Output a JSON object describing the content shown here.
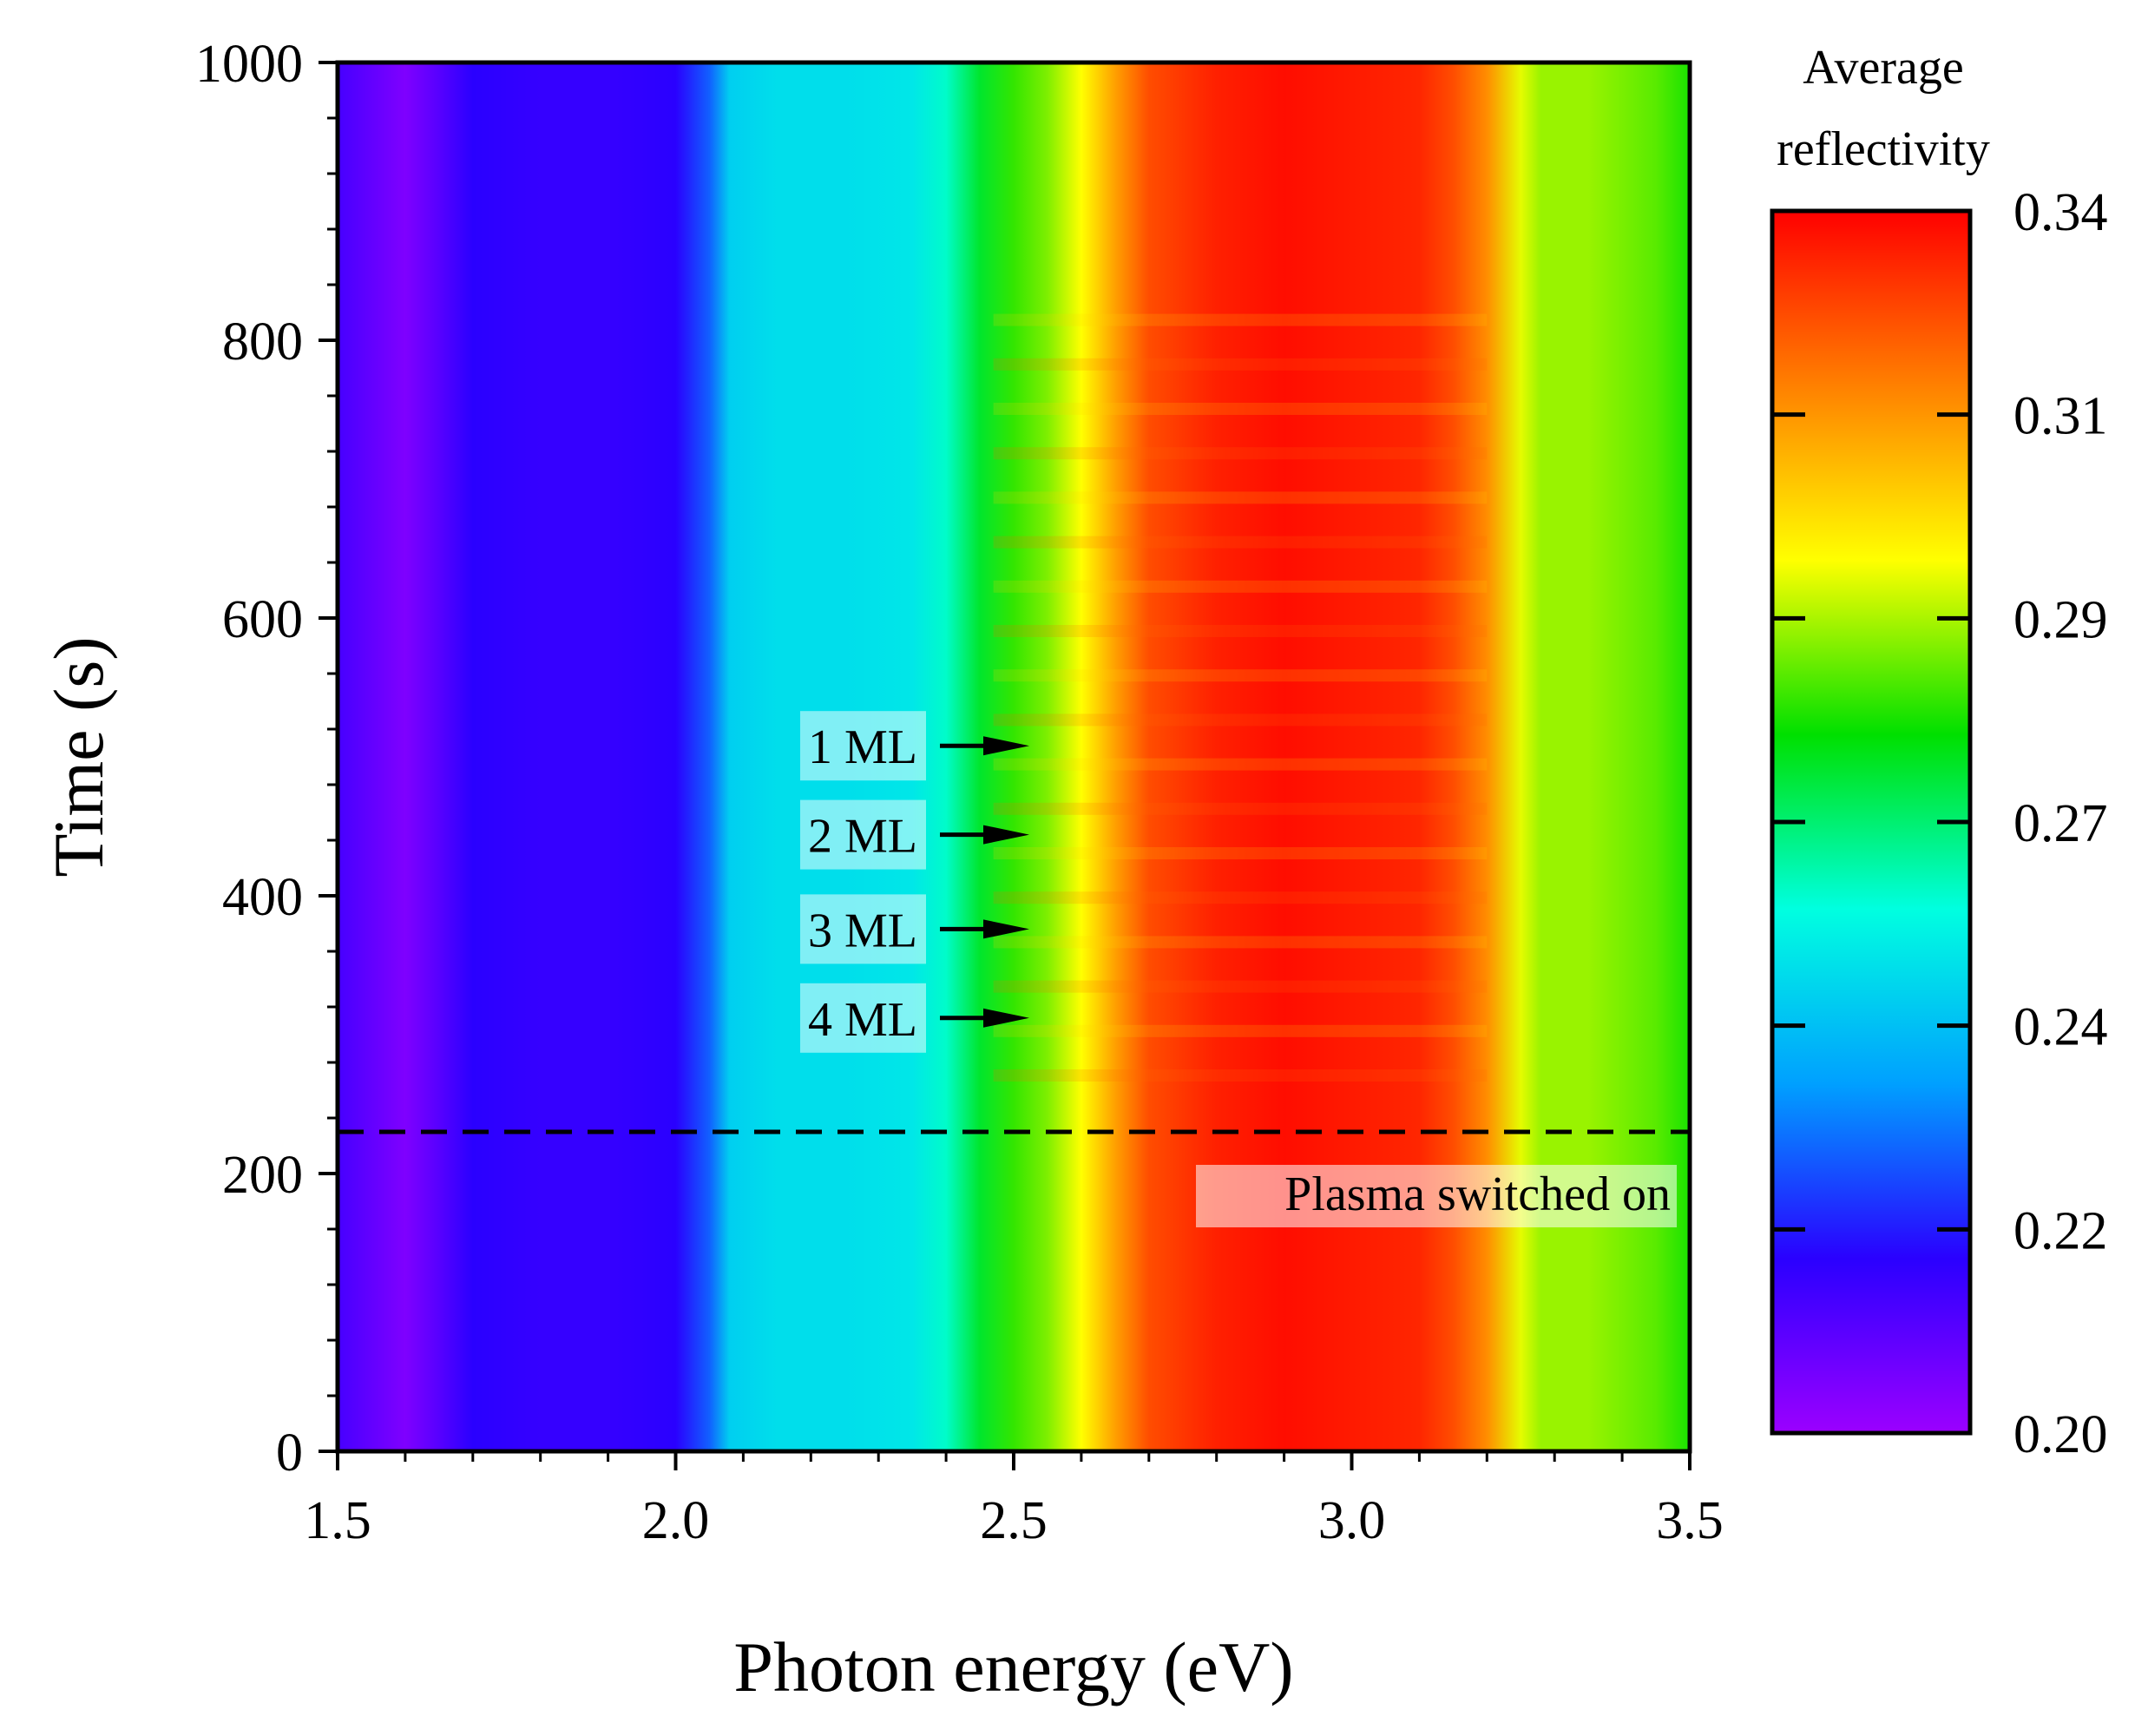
{
  "chart_data": {
    "type": "heatmap",
    "title": "",
    "xlabel": "Photon energy (eV)",
    "ylabel": "Time (s)",
    "xlim": [
      1.5,
      3.5
    ],
    "ylim": [
      0,
      1000
    ],
    "x_ticks": [
      "1.5",
      "2.0",
      "2.5",
      "3.0",
      "3.5"
    ],
    "y_ticks": [
      "0",
      "200",
      "400",
      "600",
      "800",
      "1000"
    ],
    "colorbar": {
      "title_line1": "Average",
      "title_line2": "reflectivity",
      "range": [
        0.2,
        0.34
      ],
      "tick_labels": [
        "0.20",
        "0.22",
        "0.24",
        "0.27",
        "0.29",
        "0.31",
        "0.34"
      ],
      "colors": [
        "#9b00ff",
        "#2a00ff",
        "#00a0ff",
        "#00ffe0",
        "#00e000",
        "#ffff00",
        "#ff8000",
        "#ff0000"
      ]
    },
    "spectral_profile": {
      "energy_eV": [
        1.5,
        1.6,
        1.65,
        1.7,
        1.8,
        1.9,
        2.0,
        2.05,
        2.08,
        2.15,
        2.25,
        2.35,
        2.4,
        2.45,
        2.5,
        2.55,
        2.6,
        2.65,
        2.7,
        2.8,
        2.9,
        3.0,
        3.1,
        3.15,
        3.2,
        3.25,
        3.28,
        3.35,
        3.45,
        3.5
      ],
      "reflectivity": [
        0.215,
        0.205,
        0.212,
        0.22,
        0.218,
        0.218,
        0.22,
        0.232,
        0.25,
        0.253,
        0.253,
        0.255,
        0.262,
        0.276,
        0.284,
        0.29,
        0.3,
        0.315,
        0.328,
        0.335,
        0.338,
        0.336,
        0.334,
        0.328,
        0.318,
        0.298,
        0.292,
        0.292,
        0.287,
        0.282
      ]
    },
    "plasma_on_time_s": 230,
    "annotations": [
      {
        "label": "1 ML",
        "time_s": 508
      },
      {
        "label": "2 ML",
        "time_s": 444
      },
      {
        "label": "3 ML",
        "time_s": 376
      },
      {
        "label": "4 ML",
        "time_s": 312
      }
    ],
    "plasma_label": "Plasma switched on"
  }
}
